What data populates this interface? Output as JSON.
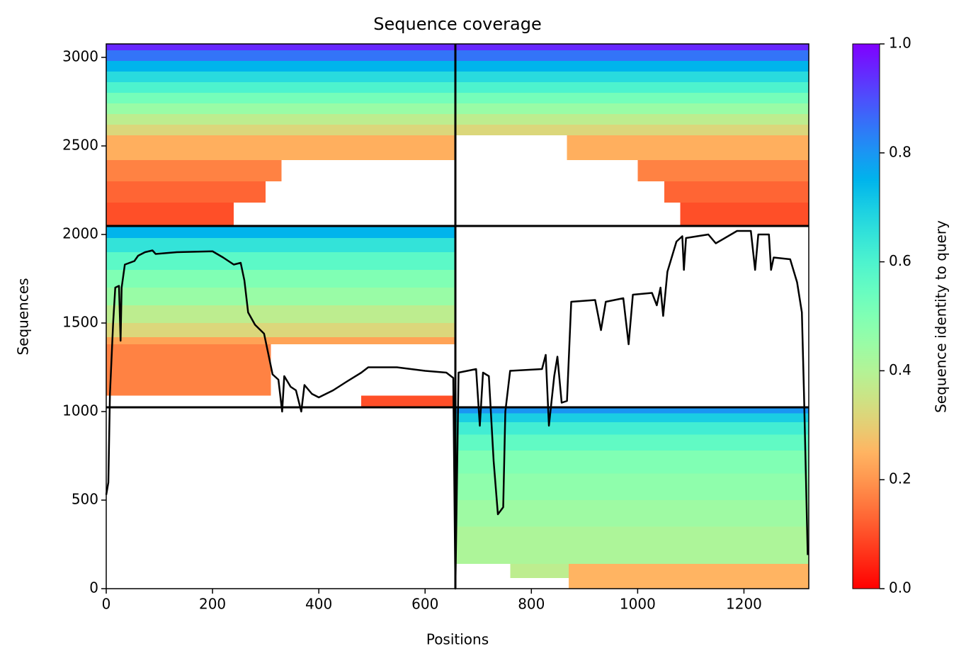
{
  "chart_data": {
    "type": "coverage",
    "title": "Sequence coverage",
    "x_label": "Positions",
    "y_label": "Sequences",
    "colorbar_label": "Sequence identity to query",
    "colormap": "rainbow_r",
    "clim": [
      0,
      1
    ],
    "cticks": [
      {
        "value": 0,
        "label": "0.0"
      },
      0.2,
      0.4,
      0.6,
      0.8,
      {
        "value": 1,
        "label": "1.0"
      }
    ],
    "xlim": [
      0,
      1322
    ],
    "ylim": [
      0,
      3076
    ],
    "xticks": [
      0,
      200,
      400,
      600,
      800,
      1000,
      1200
    ],
    "yticks": [
      0,
      500,
      1000,
      1500,
      2000,
      2500,
      3000
    ],
    "dividers": {
      "x": [
        657
      ],
      "y": [
        1024,
        2048
      ]
    },
    "heatmap": [
      {
        "rows": [
          3040,
          3076
        ],
        "identity": 0.95,
        "positions": [
          [
            0,
            1322
          ]
        ]
      },
      {
        "rows": [
          2980,
          3040
        ],
        "identity": 0.85,
        "positions": [
          [
            0,
            1322
          ]
        ]
      },
      {
        "rows": [
          2920,
          2980
        ],
        "identity": 0.75,
        "positions": [
          [
            0,
            1322
          ]
        ]
      },
      {
        "rows": [
          2860,
          2920
        ],
        "identity": 0.67,
        "positions": [
          [
            0,
            1322
          ]
        ]
      },
      {
        "rows": [
          2800,
          2860
        ],
        "identity": 0.6,
        "positions": [
          [
            0,
            1322
          ]
        ]
      },
      {
        "rows": [
          2740,
          2800
        ],
        "identity": 0.52,
        "positions": [
          [
            0,
            1322
          ]
        ]
      },
      {
        "rows": [
          2680,
          2740
        ],
        "identity": 0.45,
        "positions": [
          [
            0,
            1322
          ]
        ]
      },
      {
        "rows": [
          2620,
          2680
        ],
        "identity": 0.38,
        "positions": [
          [
            0,
            1322
          ]
        ]
      },
      {
        "rows": [
          2560,
          2620
        ],
        "identity": 0.32,
        "positions": [
          [
            0,
            1322
          ]
        ]
      },
      {
        "rows": [
          2420,
          2560
        ],
        "identity": 0.24,
        "positions": [
          [
            0,
            657
          ],
          [
            867,
            1322
          ]
        ]
      },
      {
        "rows": [
          2300,
          2420
        ],
        "identity": 0.17,
        "positions": [
          [
            0,
            330
          ],
          [
            1000,
            1322
          ]
        ]
      },
      {
        "rows": [
          2180,
          2300
        ],
        "identity": 0.13,
        "positions": [
          [
            0,
            300
          ],
          [
            1050,
            1322
          ]
        ]
      },
      {
        "rows": [
          2048,
          2180
        ],
        "identity": 0.1,
        "positions": [
          [
            0,
            240
          ],
          [
            1080,
            1322
          ]
        ]
      },
      {
        "rows": [
          1980,
          2048
        ],
        "identity": 0.75,
        "positions": [
          [
            0,
            657
          ]
        ]
      },
      {
        "rows": [
          1900,
          1980
        ],
        "identity": 0.65,
        "positions": [
          [
            0,
            657
          ]
        ]
      },
      {
        "rows": [
          1800,
          1900
        ],
        "identity": 0.57,
        "positions": [
          [
            0,
            657
          ]
        ]
      },
      {
        "rows": [
          1700,
          1800
        ],
        "identity": 0.5,
        "positions": [
          [
            0,
            657
          ]
        ]
      },
      {
        "rows": [
          1600,
          1700
        ],
        "identity": 0.45,
        "positions": [
          [
            0,
            657
          ]
        ]
      },
      {
        "rows": [
          1500,
          1600
        ],
        "identity": 0.38,
        "positions": [
          [
            0,
            657
          ]
        ]
      },
      {
        "rows": [
          1420,
          1500
        ],
        "identity": 0.32,
        "positions": [
          [
            0,
            657
          ]
        ]
      },
      {
        "rows": [
          1380,
          1420
        ],
        "identity": 0.22,
        "positions": [
          [
            0,
            657
          ]
        ]
      },
      {
        "rows": [
          1090,
          1380
        ],
        "identity": 0.17,
        "positions": [
          [
            0,
            310
          ]
        ]
      },
      {
        "rows": [
          1024,
          1090
        ],
        "identity": 0.1,
        "positions": [
          [
            480,
            657
          ]
        ]
      },
      {
        "rows": [
          990,
          1024
        ],
        "identity": 0.8,
        "positions": [
          [
            657,
            1322
          ]
        ]
      },
      {
        "rows": [
          940,
          990
        ],
        "identity": 0.7,
        "positions": [
          [
            657,
            1322
          ]
        ]
      },
      {
        "rows": [
          870,
          940
        ],
        "identity": 0.62,
        "positions": [
          [
            657,
            1322
          ]
        ]
      },
      {
        "rows": [
          780,
          870
        ],
        "identity": 0.56,
        "positions": [
          [
            657,
            1322
          ]
        ]
      },
      {
        "rows": [
          650,
          780
        ],
        "identity": 0.5,
        "positions": [
          [
            657,
            1322
          ]
        ]
      },
      {
        "rows": [
          500,
          650
        ],
        "identity": 0.47,
        "positions": [
          [
            657,
            1322
          ]
        ]
      },
      {
        "rows": [
          350,
          500
        ],
        "identity": 0.44,
        "positions": [
          [
            657,
            1322
          ]
        ]
      },
      {
        "rows": [
          140,
          350
        ],
        "identity": 0.41,
        "positions": [
          [
            657,
            1322
          ]
        ]
      },
      {
        "rows": [
          60,
          140
        ],
        "identity": 0.38,
        "positions": [
          [
            760,
            870
          ]
        ]
      },
      {
        "rows": [
          0,
          140
        ],
        "identity": 0.25,
        "positions": [
          [
            870,
            1322
          ]
        ]
      }
    ],
    "coverage": {
      "x": [
        0,
        4,
        7,
        13,
        17,
        24,
        27,
        29,
        35,
        53,
        60,
        73,
        87,
        93,
        133,
        200,
        220,
        240,
        253,
        260,
        267,
        280,
        297,
        304,
        313,
        324,
        331,
        335,
        347,
        357,
        367,
        373,
        387,
        400,
        427,
        453,
        480,
        493,
        547,
        600,
        640,
        653,
        657,
        663,
        696,
        703,
        709,
        720,
        729,
        737,
        747,
        751,
        760,
        820,
        827,
        833,
        843,
        849,
        857,
        867,
        875,
        920,
        931,
        940,
        973,
        983,
        991,
        1027,
        1036,
        1043,
        1048,
        1056,
        1073,
        1084,
        1087,
        1091,
        1133,
        1147,
        1187,
        1213,
        1221,
        1227,
        1247,
        1251,
        1256,
        1287,
        1300,
        1309,
        1313,
        1320
      ],
      "y": [
        530,
        600,
        1100,
        1500,
        1700,
        1710,
        1400,
        1700,
        1830,
        1850,
        1880,
        1900,
        1910,
        1890,
        1900,
        1905,
        1870,
        1830,
        1840,
        1740,
        1560,
        1490,
        1440,
        1340,
        1210,
        1180,
        1000,
        1200,
        1140,
        1120,
        1000,
        1150,
        1100,
        1080,
        1120,
        1170,
        1220,
        1250,
        1250,
        1230,
        1220,
        1190,
        0,
        1220,
        1240,
        920,
        1220,
        1200,
        720,
        420,
        460,
        1000,
        1230,
        1240,
        1320,
        920,
        1200,
        1310,
        1050,
        1060,
        1620,
        1630,
        1460,
        1620,
        1640,
        1380,
        1660,
        1670,
        1600,
        1700,
        1540,
        1790,
        1960,
        1990,
        1800,
        1980,
        2000,
        1950,
        2020,
        2020,
        1800,
        2000,
        2000,
        1800,
        1870,
        1860,
        1730,
        1560,
        1100,
        190
      ]
    }
  }
}
